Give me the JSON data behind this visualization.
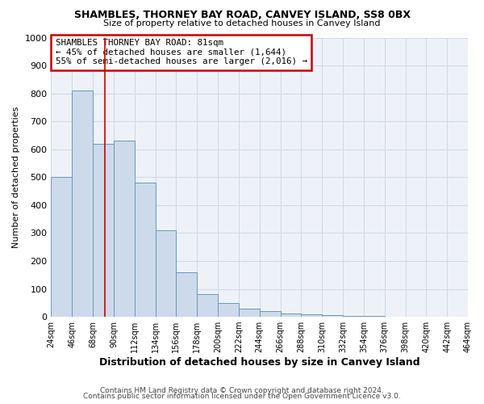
{
  "title": "SHAMBLES, THORNEY BAY ROAD, CANVEY ISLAND, SS8 0BX",
  "subtitle": "Size of property relative to detached houses in Canvey Island",
  "xlabel": "Distribution of detached houses by size in Canvey Island",
  "ylabel": "Number of detached properties",
  "footer_line1": "Contains HM Land Registry data © Crown copyright and database right 2024.",
  "footer_line2": "Contains public sector information licensed under the Open Government Licence v3.0.",
  "bin_edges": [
    24,
    46,
    68,
    90,
    112,
    134,
    156,
    178,
    200,
    222,
    244,
    266,
    288,
    310,
    332,
    354,
    376,
    398,
    420,
    442,
    464
  ],
  "bar_heights": [
    500,
    810,
    620,
    630,
    480,
    310,
    160,
    80,
    48,
    30,
    20,
    12,
    8,
    5,
    3,
    2,
    1,
    0,
    0,
    1
  ],
  "bar_color": "#cddaeb",
  "bar_edge_color": "#6699bb",
  "vline_x": 81,
  "vline_color": "#cc0000",
  "ylim": [
    0,
    1000
  ],
  "yticks": [
    0,
    100,
    200,
    300,
    400,
    500,
    600,
    700,
    800,
    900,
    1000
  ],
  "annotation_title": "SHAMBLES THORNEY BAY ROAD: 81sqm",
  "annotation_line1": "← 45% of detached houses are smaller (1,644)",
  "annotation_line2": "55% of semi-detached houses are larger (2,016) →",
  "annotation_box_color": "#ffffff",
  "annotation_box_edge_color": "#cc0000",
  "bg_color": "#ffffff",
  "plot_bg_color": "#eef2f8"
}
